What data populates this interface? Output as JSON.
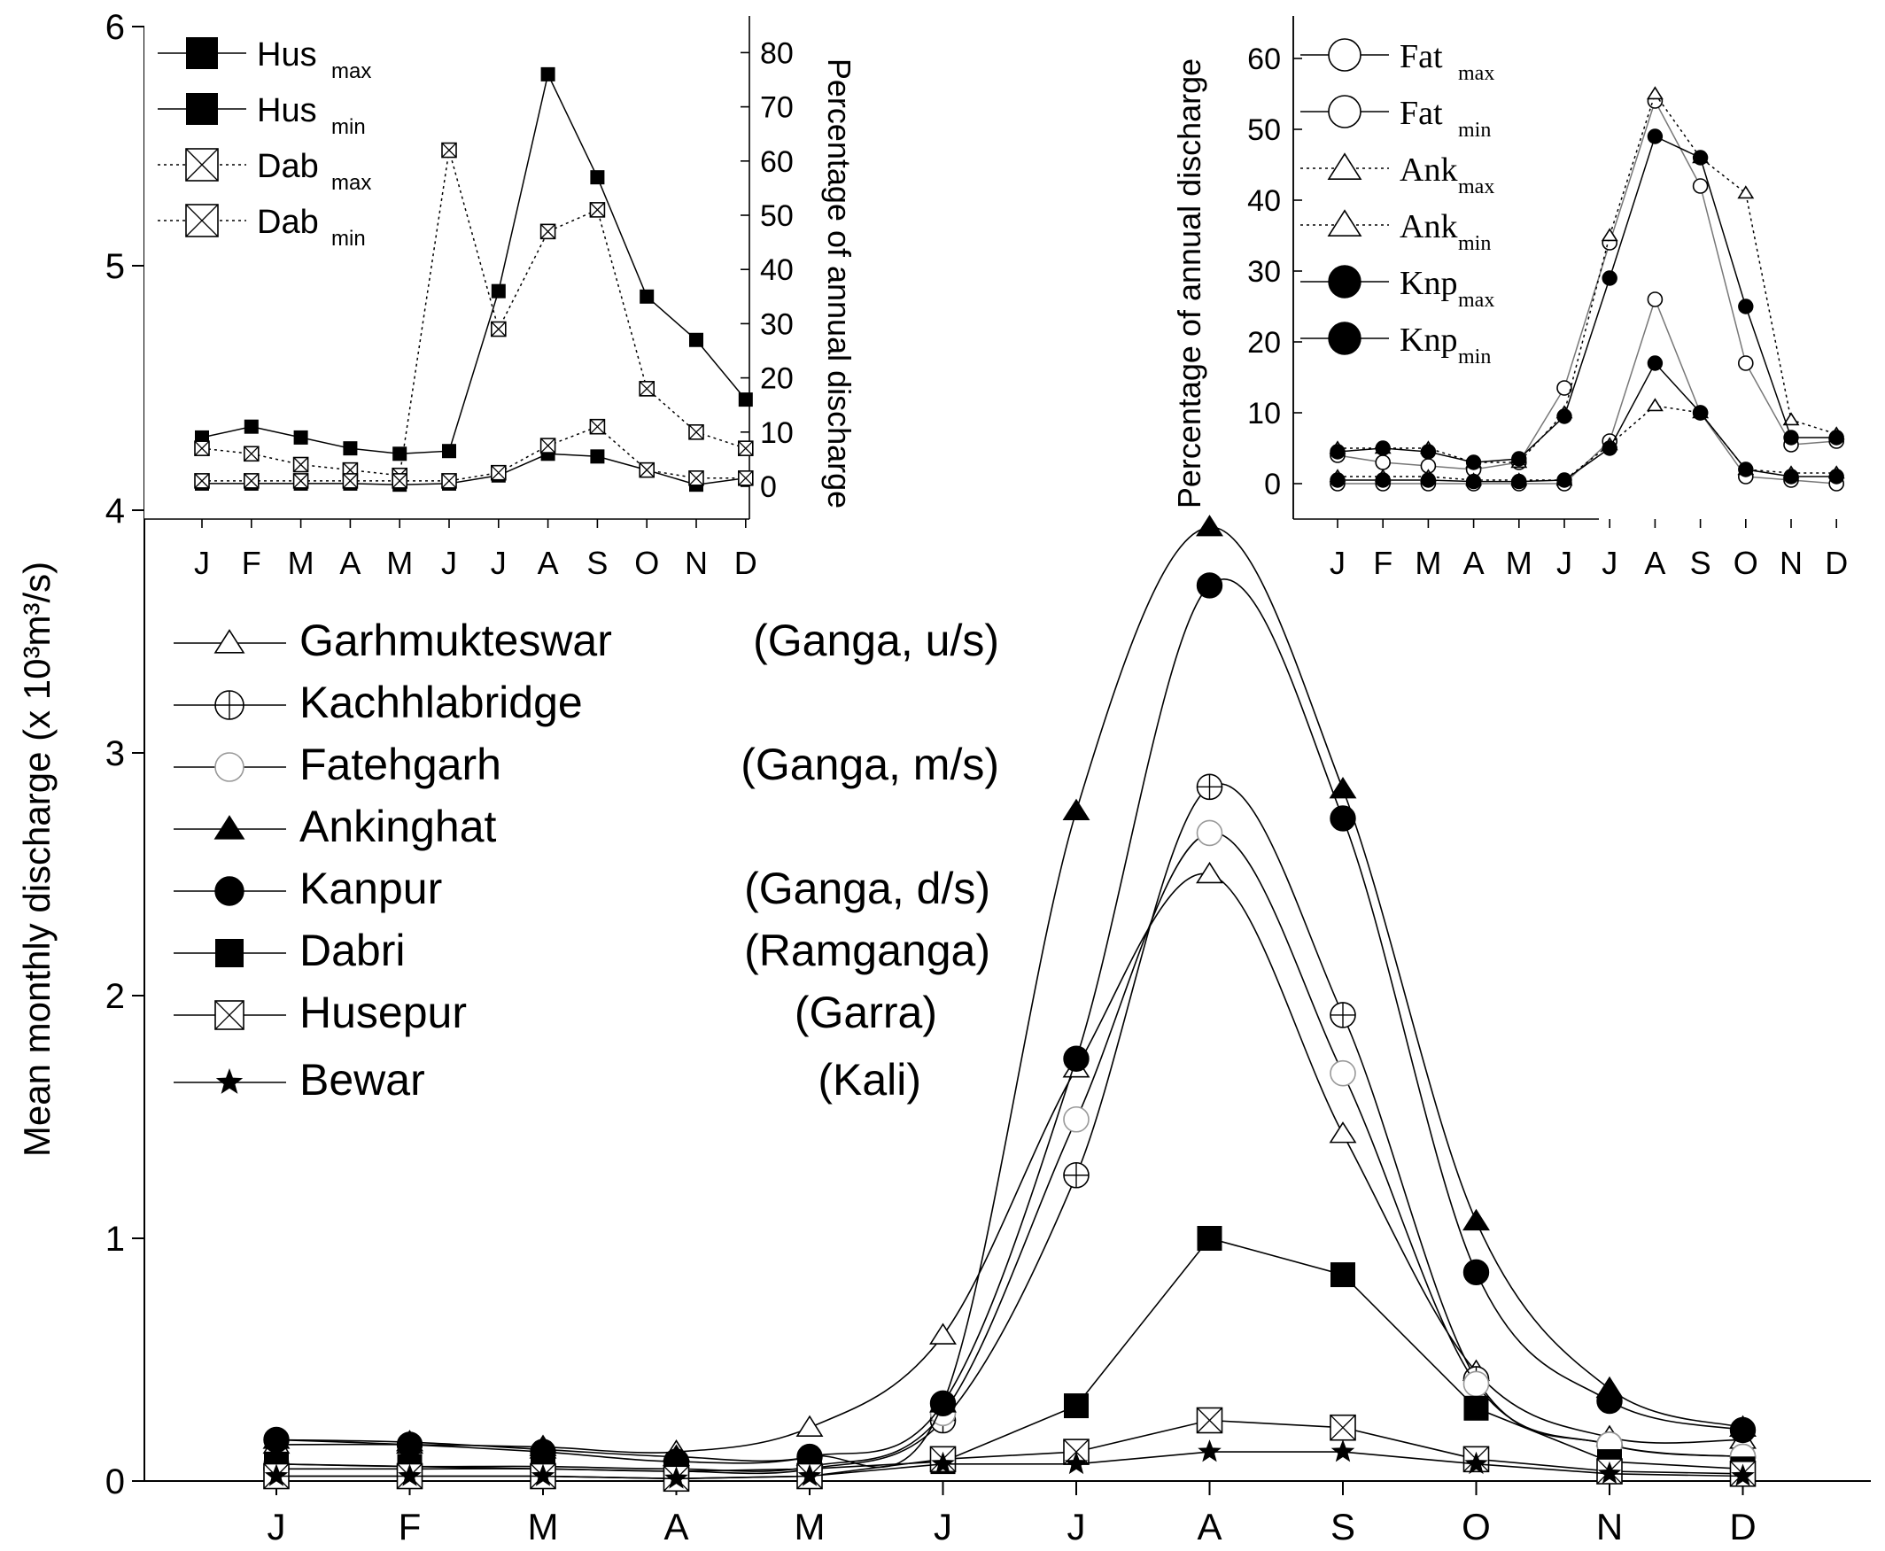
{
  "chart_data": [
    {
      "type": "line",
      "ylabel": "Mean monthly discharge (x 10³m³/s)",
      "ylim": [
        0,
        6
      ],
      "yticks": [
        "0",
        "1",
        "2",
        "3",
        "4"
      ],
      "x": [
        "J",
        "F",
        "M",
        "A",
        "M",
        "J",
        "J",
        "A",
        "S",
        "O",
        "N",
        "D"
      ],
      "legend_placement": "left",
      "series": [
        {
          "name": "Garhmukteswar",
          "note": "(Ganga, u/s)",
          "marker": "triangle-open",
          "values": [
            0.15,
            0.15,
            0.14,
            0.12,
            0.22,
            0.6,
            1.7,
            2.5,
            1.43,
            0.45,
            0.18,
            0.17
          ]
        },
        {
          "name": "Kachhlabridge",
          "note": "",
          "marker": "circle-plus",
          "values": [
            0.05,
            0.05,
            0.05,
            0.04,
            0.05,
            0.25,
            1.26,
            2.86,
            1.92,
            0.42,
            0.15,
            0.1
          ]
        },
        {
          "name": "Fatehgarh",
          "note": "(Ganga, m/s)",
          "marker": "circle-open-gray",
          "values": [
            0.07,
            0.06,
            0.06,
            0.05,
            0.06,
            0.28,
            1.49,
            2.67,
            1.68,
            0.4,
            0.15,
            0.1
          ]
        },
        {
          "name": "Ankinghat",
          "note": "",
          "marker": "triangle-filled",
          "values": [
            0.17,
            0.16,
            0.13,
            0.1,
            0.1,
            0.32,
            2.76,
            3.93,
            2.85,
            1.07,
            0.38,
            0.22
          ]
        },
        {
          "name": "Kanpur",
          "note": "(Ganga, d/s)",
          "marker": "circle-filled",
          "values": [
            0.17,
            0.15,
            0.12,
            0.08,
            0.1,
            0.32,
            1.74,
            3.69,
            2.73,
            0.86,
            0.33,
            0.21
          ]
        },
        {
          "name": "Dabri",
          "note": "(Ramganga)",
          "marker": "square-filled",
          "values": [
            0.07,
            0.06,
            0.05,
            0.04,
            0.05,
            0.08,
            0.31,
            1.0,
            0.85,
            0.3,
            0.08,
            0.05
          ]
        },
        {
          "name": "Husepur",
          "note": "(Garra)",
          "marker": "square-x",
          "values": [
            0.02,
            0.02,
            0.02,
            0.01,
            0.02,
            0.09,
            0.12,
            0.25,
            0.22,
            0.09,
            0.04,
            0.03
          ]
        },
        {
          "name": "Bewar",
          "note": "(Kali)",
          "marker": "star",
          "values": [
            0.02,
            0.02,
            0.02,
            0.01,
            0.02,
            0.07,
            0.07,
            0.12,
            0.12,
            0.07,
            0.03,
            0.02
          ]
        }
      ]
    },
    {
      "type": "line",
      "inset": "top-left",
      "ylabel": "Percentage of annual discharge",
      "ylim": [
        -5,
        85
      ],
      "yticks": [
        "0",
        "10",
        "20",
        "30",
        "40",
        "50",
        "60",
        "70",
        "80"
      ],
      "x": [
        "J",
        "F",
        "M",
        "A",
        "M",
        "J",
        "J",
        "A",
        "S",
        "O",
        "N",
        "D"
      ],
      "legend_placement": "top-left",
      "series": [
        {
          "name": "Hus",
          "sub": "max",
          "marker": "square-filled",
          "dash": false,
          "values": [
            9,
            11,
            9,
            7,
            6,
            6.5,
            36,
            76,
            57,
            35,
            27,
            16
          ]
        },
        {
          "name": "Hus",
          "sub": "min",
          "marker": "square-filled",
          "dash": false,
          "values": [
            0.5,
            0.5,
            0.5,
            0.5,
            0.3,
            0.5,
            2,
            6,
            5.5,
            3,
            0.3,
            1.5
          ]
        },
        {
          "name": "Dab",
          "sub": "max",
          "marker": "square-x",
          "dash": true,
          "values": [
            7,
            6,
            4,
            3,
            2,
            62,
            29,
            47,
            51,
            18,
            10,
            7
          ]
        },
        {
          "name": "Dab",
          "sub": "min",
          "marker": "square-x",
          "dash": true,
          "values": [
            1,
            1,
            1,
            1,
            1,
            1,
            2.5,
            7.5,
            11,
            3,
            1.5,
            1.5
          ]
        }
      ]
    },
    {
      "type": "line",
      "inset": "top-right",
      "ylabel": "Percentage of annual discharge",
      "ylim": [
        -5,
        65
      ],
      "yticks": [
        "0",
        "10",
        "20",
        "30",
        "40",
        "50",
        "60"
      ],
      "x": [
        "J",
        "F",
        "M",
        "A",
        "M",
        "J",
        "J",
        "A",
        "S",
        "O",
        "N",
        "D"
      ],
      "legend_placement": "top-left",
      "series": [
        {
          "name": "Fat",
          "sub": "max",
          "marker": "circle-open",
          "dash": false,
          "color": "#777777",
          "values": [
            4,
            3,
            2.5,
            2,
            3,
            13.5,
            34,
            54,
            42,
            17,
            5.5,
            6
          ]
        },
        {
          "name": "Fat",
          "sub": "min",
          "marker": "circle-open",
          "dash": false,
          "color": "#777777",
          "values": [
            0,
            0,
            0,
            0,
            0,
            0,
            6,
            26,
            10,
            1,
            0.5,
            0
          ]
        },
        {
          "name": "Ank",
          "sub": "max",
          "marker": "triangle-open",
          "dash": true,
          "values": [
            5,
            5,
            5,
            3,
            3,
            10,
            35,
            55,
            46,
            41,
            9,
            7
          ]
        },
        {
          "name": "Ank",
          "sub": "min",
          "marker": "triangle-open",
          "dash": true,
          "values": [
            1,
            1,
            1,
            0.5,
            0.5,
            0.5,
            5.5,
            11,
            10,
            2,
            1.5,
            1.5
          ]
        },
        {
          "name": "Knp",
          "sub": "max",
          "marker": "circle-filled",
          "dash": false,
          "values": [
            4.5,
            5,
            4.5,
            3,
            3.5,
            9.5,
            29,
            49,
            46,
            25,
            6.5,
            6.5
          ]
        },
        {
          "name": "Knp",
          "sub": "min",
          "marker": "circle-filled",
          "dash": false,
          "values": [
            0.5,
            0.5,
            0.5,
            0.3,
            0.3,
            0.5,
            5,
            17,
            10,
            2,
            1,
            1
          ]
        }
      ]
    }
  ]
}
